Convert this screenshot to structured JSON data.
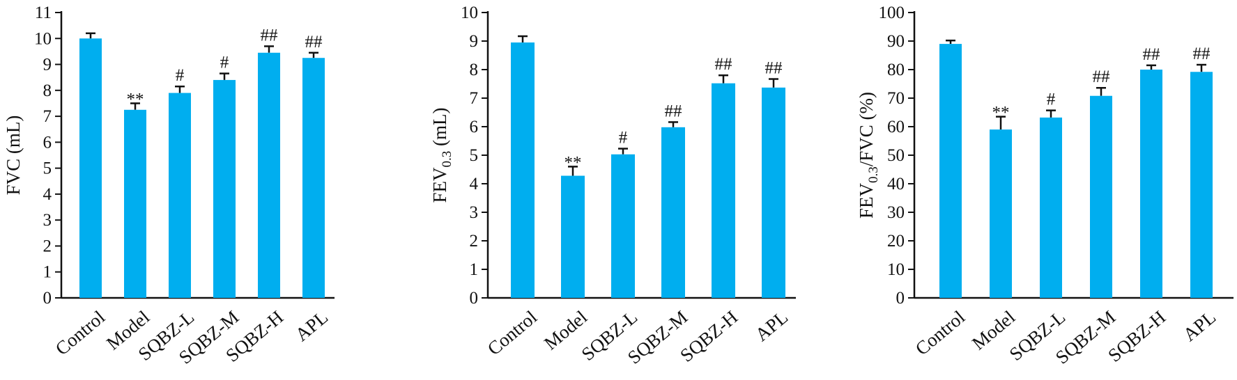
{
  "chart_data": [
    {
      "type": "bar",
      "ylabel": "FVC (mL)",
      "ylabel_parts": [
        {
          "text": "FVC (mL)",
          "sub": false
        }
      ],
      "categories": [
        "Control",
        "Model",
        "SQBZ-L",
        "SQBZ-M",
        "SQBZ-H",
        "APL"
      ],
      "values": [
        10.0,
        7.25,
        7.9,
        8.4,
        9.45,
        9.25
      ],
      "errors": [
        0.2,
        0.25,
        0.25,
        0.25,
        0.25,
        0.2
      ],
      "annotations": [
        "",
        "**",
        "#",
        "#",
        "##",
        "##"
      ],
      "ylim": [
        0,
        11
      ],
      "yticks": [
        0,
        1,
        2,
        3,
        4,
        5,
        6,
        7,
        8,
        9,
        10,
        11
      ],
      "bar_color": "#00AEEF",
      "grid": false
    },
    {
      "type": "bar",
      "ylabel": "FEV0.3 (mL)",
      "ylabel_parts": [
        {
          "text": "FEV",
          "sub": false
        },
        {
          "text": "0.3",
          "sub": true
        },
        {
          "text": " (mL)",
          "sub": false
        }
      ],
      "categories": [
        "Control",
        "Model",
        "SQBZ-L",
        "SQBZ-M",
        "SQBZ-H",
        "APL"
      ],
      "values": [
        8.95,
        4.28,
        5.03,
        5.98,
        7.52,
        7.37
      ],
      "errors": [
        0.22,
        0.32,
        0.2,
        0.18,
        0.28,
        0.3
      ],
      "annotations": [
        "",
        "**",
        "#",
        "##",
        "##",
        "##"
      ],
      "ylim": [
        0,
        10
      ],
      "yticks": [
        0,
        1,
        2,
        3,
        4,
        5,
        6,
        7,
        8,
        9,
        10
      ],
      "bar_color": "#00AEEF",
      "grid": false
    },
    {
      "type": "bar",
      "ylabel": "FEV0.3/FVC (%)",
      "ylabel_parts": [
        {
          "text": "FEV",
          "sub": false
        },
        {
          "text": "0.3",
          "sub": true
        },
        {
          "text": "/FVC (%)",
          "sub": false
        }
      ],
      "categories": [
        "Control",
        "Model",
        "SQBZ-L",
        "SQBZ-M",
        "SQBZ-H",
        "APL"
      ],
      "values": [
        89.0,
        59.0,
        63.2,
        70.8,
        80.0,
        79.2
      ],
      "errors": [
        1.2,
        4.5,
        2.5,
        2.8,
        1.5,
        2.5
      ],
      "annotations": [
        "",
        "**",
        "#",
        "##",
        "##",
        "##"
      ],
      "ylim": [
        0,
        100
      ],
      "yticks": [
        0,
        10,
        20,
        30,
        40,
        50,
        60,
        70,
        80,
        90,
        100
      ],
      "bar_color": "#00AEEF",
      "grid": false
    }
  ]
}
